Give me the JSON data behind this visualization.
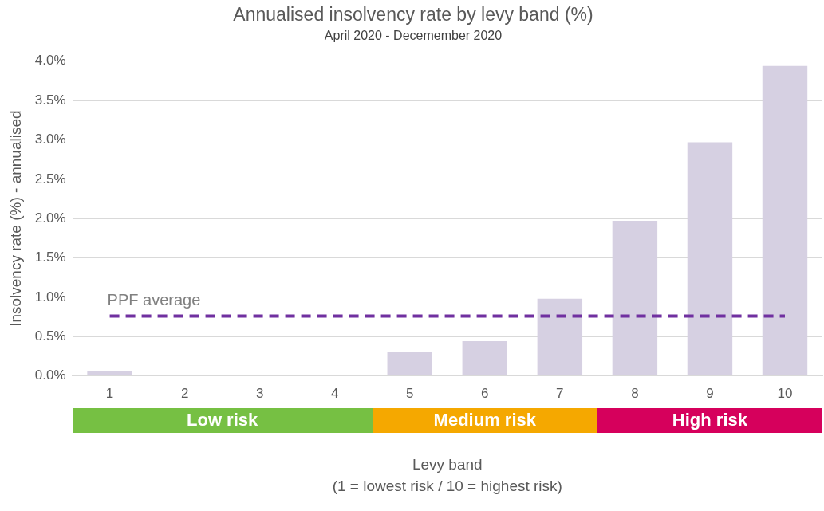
{
  "chart_data": {
    "type": "bar",
    "title": "Annualised insolvency rate by levy band (%)",
    "subtitle": "April 2020 - Decemember 2020",
    "xlabel": "Levy band\n(1 = lowest risk / 10 = highest risk)",
    "ylabel": "Insolvency rate (%) - annualised",
    "categories": [
      "1",
      "2",
      "3",
      "4",
      "5",
      "6",
      "7",
      "8",
      "9",
      "10"
    ],
    "values": [
      0.06,
      null,
      null,
      null,
      0.31,
      0.44,
      0.98,
      1.97,
      2.97,
      3.94
    ],
    "color": "#d6d0e2",
    "ylim": [
      0,
      4
    ],
    "yticks": [
      {
        "value": 0,
        "label": "0.0%"
      },
      {
        "value": 0.5,
        "label": "0.5%"
      },
      {
        "value": 1,
        "label": "1.0%"
      },
      {
        "value": 1.5,
        "label": "1.5%"
      },
      {
        "value": 2,
        "label": "2.0%"
      },
      {
        "value": 2.5,
        "label": "2.5%"
      },
      {
        "value": 3,
        "label": "3.0%"
      },
      {
        "value": 3.5,
        "label": "3.5%"
      },
      {
        "value": 4,
        "label": "4.0%"
      }
    ],
    "grid": "y",
    "legend": false,
    "ref_lines": [
      {
        "axis": "y",
        "value": 0.76,
        "label": "PPF average",
        "color": "#7030a0",
        "line_style": "dashed"
      }
    ],
    "annotations": [
      "Low risk",
      "Medium risk",
      "High risk"
    ]
  }
}
